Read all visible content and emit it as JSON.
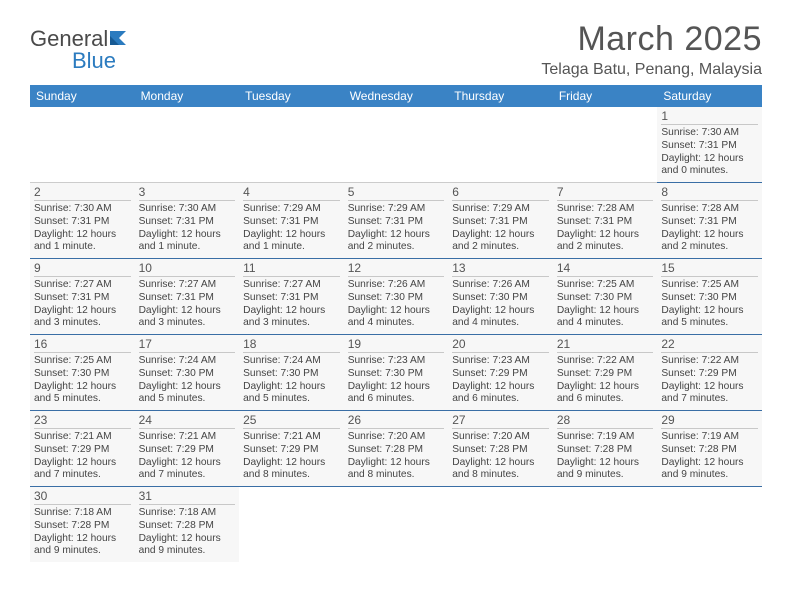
{
  "logo": {
    "text1": "General",
    "text2": "Blue",
    "mark_color": "#2b7bbf"
  },
  "title": {
    "month": "March 2025",
    "location": "Telaga Batu, Penang, Malaysia"
  },
  "calendar": {
    "header_bg": "#3a83c5",
    "header_color": "#ffffff",
    "cell_bg": "#f7f7f7",
    "border_color": "#3a6ea5",
    "day_headers": [
      "Sunday",
      "Monday",
      "Tuesday",
      "Wednesday",
      "Thursday",
      "Friday",
      "Saturday"
    ],
    "weeks": [
      [
        null,
        null,
        null,
        null,
        null,
        null,
        {
          "n": "1",
          "sr": "Sunrise: 7:30 AM",
          "ss": "Sunset: 7:31 PM",
          "dl": "Daylight: 12 hours and 0 minutes."
        }
      ],
      [
        {
          "n": "2",
          "sr": "Sunrise: 7:30 AM",
          "ss": "Sunset: 7:31 PM",
          "dl": "Daylight: 12 hours and 1 minute."
        },
        {
          "n": "3",
          "sr": "Sunrise: 7:30 AM",
          "ss": "Sunset: 7:31 PM",
          "dl": "Daylight: 12 hours and 1 minute."
        },
        {
          "n": "4",
          "sr": "Sunrise: 7:29 AM",
          "ss": "Sunset: 7:31 PM",
          "dl": "Daylight: 12 hours and 1 minute."
        },
        {
          "n": "5",
          "sr": "Sunrise: 7:29 AM",
          "ss": "Sunset: 7:31 PM",
          "dl": "Daylight: 12 hours and 2 minutes."
        },
        {
          "n": "6",
          "sr": "Sunrise: 7:29 AM",
          "ss": "Sunset: 7:31 PM",
          "dl": "Daylight: 12 hours and 2 minutes."
        },
        {
          "n": "7",
          "sr": "Sunrise: 7:28 AM",
          "ss": "Sunset: 7:31 PM",
          "dl": "Daylight: 12 hours and 2 minutes."
        },
        {
          "n": "8",
          "sr": "Sunrise: 7:28 AM",
          "ss": "Sunset: 7:31 PM",
          "dl": "Daylight: 12 hours and 2 minutes."
        }
      ],
      [
        {
          "n": "9",
          "sr": "Sunrise: 7:27 AM",
          "ss": "Sunset: 7:31 PM",
          "dl": "Daylight: 12 hours and 3 minutes."
        },
        {
          "n": "10",
          "sr": "Sunrise: 7:27 AM",
          "ss": "Sunset: 7:31 PM",
          "dl": "Daylight: 12 hours and 3 minutes."
        },
        {
          "n": "11",
          "sr": "Sunrise: 7:27 AM",
          "ss": "Sunset: 7:31 PM",
          "dl": "Daylight: 12 hours and 3 minutes."
        },
        {
          "n": "12",
          "sr": "Sunrise: 7:26 AM",
          "ss": "Sunset: 7:30 PM",
          "dl": "Daylight: 12 hours and 4 minutes."
        },
        {
          "n": "13",
          "sr": "Sunrise: 7:26 AM",
          "ss": "Sunset: 7:30 PM",
          "dl": "Daylight: 12 hours and 4 minutes."
        },
        {
          "n": "14",
          "sr": "Sunrise: 7:25 AM",
          "ss": "Sunset: 7:30 PM",
          "dl": "Daylight: 12 hours and 4 minutes."
        },
        {
          "n": "15",
          "sr": "Sunrise: 7:25 AM",
          "ss": "Sunset: 7:30 PM",
          "dl": "Daylight: 12 hours and 5 minutes."
        }
      ],
      [
        {
          "n": "16",
          "sr": "Sunrise: 7:25 AM",
          "ss": "Sunset: 7:30 PM",
          "dl": "Daylight: 12 hours and 5 minutes."
        },
        {
          "n": "17",
          "sr": "Sunrise: 7:24 AM",
          "ss": "Sunset: 7:30 PM",
          "dl": "Daylight: 12 hours and 5 minutes."
        },
        {
          "n": "18",
          "sr": "Sunrise: 7:24 AM",
          "ss": "Sunset: 7:30 PM",
          "dl": "Daylight: 12 hours and 5 minutes."
        },
        {
          "n": "19",
          "sr": "Sunrise: 7:23 AM",
          "ss": "Sunset: 7:30 PM",
          "dl": "Daylight: 12 hours and 6 minutes."
        },
        {
          "n": "20",
          "sr": "Sunrise: 7:23 AM",
          "ss": "Sunset: 7:29 PM",
          "dl": "Daylight: 12 hours and 6 minutes."
        },
        {
          "n": "21",
          "sr": "Sunrise: 7:22 AM",
          "ss": "Sunset: 7:29 PM",
          "dl": "Daylight: 12 hours and 6 minutes."
        },
        {
          "n": "22",
          "sr": "Sunrise: 7:22 AM",
          "ss": "Sunset: 7:29 PM",
          "dl": "Daylight: 12 hours and 7 minutes."
        }
      ],
      [
        {
          "n": "23",
          "sr": "Sunrise: 7:21 AM",
          "ss": "Sunset: 7:29 PM",
          "dl": "Daylight: 12 hours and 7 minutes."
        },
        {
          "n": "24",
          "sr": "Sunrise: 7:21 AM",
          "ss": "Sunset: 7:29 PM",
          "dl": "Daylight: 12 hours and 7 minutes."
        },
        {
          "n": "25",
          "sr": "Sunrise: 7:21 AM",
          "ss": "Sunset: 7:29 PM",
          "dl": "Daylight: 12 hours and 8 minutes."
        },
        {
          "n": "26",
          "sr": "Sunrise: 7:20 AM",
          "ss": "Sunset: 7:28 PM",
          "dl": "Daylight: 12 hours and 8 minutes."
        },
        {
          "n": "27",
          "sr": "Sunrise: 7:20 AM",
          "ss": "Sunset: 7:28 PM",
          "dl": "Daylight: 12 hours and 8 minutes."
        },
        {
          "n": "28",
          "sr": "Sunrise: 7:19 AM",
          "ss": "Sunset: 7:28 PM",
          "dl": "Daylight: 12 hours and 9 minutes."
        },
        {
          "n": "29",
          "sr": "Sunrise: 7:19 AM",
          "ss": "Sunset: 7:28 PM",
          "dl": "Daylight: 12 hours and 9 minutes."
        }
      ],
      [
        {
          "n": "30",
          "sr": "Sunrise: 7:18 AM",
          "ss": "Sunset: 7:28 PM",
          "dl": "Daylight: 12 hours and 9 minutes."
        },
        {
          "n": "31",
          "sr": "Sunrise: 7:18 AM",
          "ss": "Sunset: 7:28 PM",
          "dl": "Daylight: 12 hours and 9 minutes."
        },
        null,
        null,
        null,
        null,
        null
      ]
    ]
  }
}
